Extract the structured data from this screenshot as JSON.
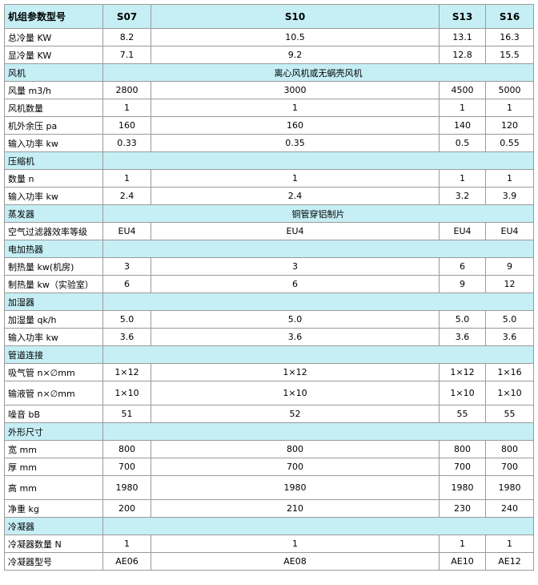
{
  "table": {
    "header": [
      "机组参数型号",
      "S07",
      "S10",
      "S13",
      "S16"
    ],
    "rows": [
      [
        "总冷量 KW",
        "8.2",
        "10.5",
        "13.1",
        "16.3"
      ],
      [
        "显冷量 KW",
        "7.1",
        "9.2",
        "12.8",
        "15.5"
      ],
      [
        "风机",
        "离心风机或无蜗壳风机"
      ],
      [
        "风量 m3/h",
        "2800",
        "3000",
        "4500",
        "5000"
      ],
      [
        "风机数量",
        "1",
        "1",
        "1",
        "1"
      ],
      [
        "机外余压 pa",
        "160",
        "160",
        "140",
        "120"
      ],
      [
        "输入功率 kw",
        "0.33",
        "0.35",
        "0.5",
        "0.55"
      ],
      [
        "压缩机"
      ],
      [
        "数量 n",
        "1",
        "1",
        "1",
        "1"
      ],
      [
        "输入功率 kw",
        "2.4",
        "2.4",
        "3.2",
        "3.9"
      ],
      [
        "蒸发器",
        "铜管穿铝制片"
      ],
      [
        "空气过滤器效率等级",
        "EU4",
        "EU4",
        "EU4",
        "EU4"
      ],
      [
        "电加热器"
      ],
      [
        "制热量 kw(机房)",
        "3",
        "3",
        "6",
        "9"
      ],
      [
        "制热量 kw（实验室）",
        "6",
        "6",
        "9",
        "12"
      ],
      [
        "加湿器"
      ],
      [
        "加湿量 qk/h",
        "5.0",
        "5.0",
        "5.0",
        "5.0"
      ],
      [
        "输入功率 kw",
        "3.6",
        "3.6",
        "3.6",
        "3.6"
      ],
      [
        "管道连接"
      ],
      [
        "吸气管 n×∅mm",
        "1×12",
        "1×12",
        "1×12",
        "1×16"
      ],
      [
        "输液管 n×∅mm",
        "1×10",
        "1×10",
        "1×10",
        "1×10"
      ],
      [
        "噪音 bB",
        "51",
        "52",
        "55",
        "55"
      ],
      [
        "外形尺寸"
      ],
      [
        "宽 mm",
        "800",
        "800",
        "800",
        "800"
      ],
      [
        "厚 mm",
        "700",
        "700",
        "700",
        "700"
      ],
      [
        "高 mm",
        "1980",
        "1980",
        "1980",
        "1980"
      ],
      [
        "净重 kg",
        "200",
        "210",
        "230",
        "240"
      ],
      [
        "冷凝器"
      ],
      [
        "冷凝器数量 N",
        "1",
        "1",
        "1",
        "1"
      ],
      [
        "冷凝器型号",
        "AE06",
        "AE08",
        "AE10",
        "AE12"
      ]
    ]
  }
}
